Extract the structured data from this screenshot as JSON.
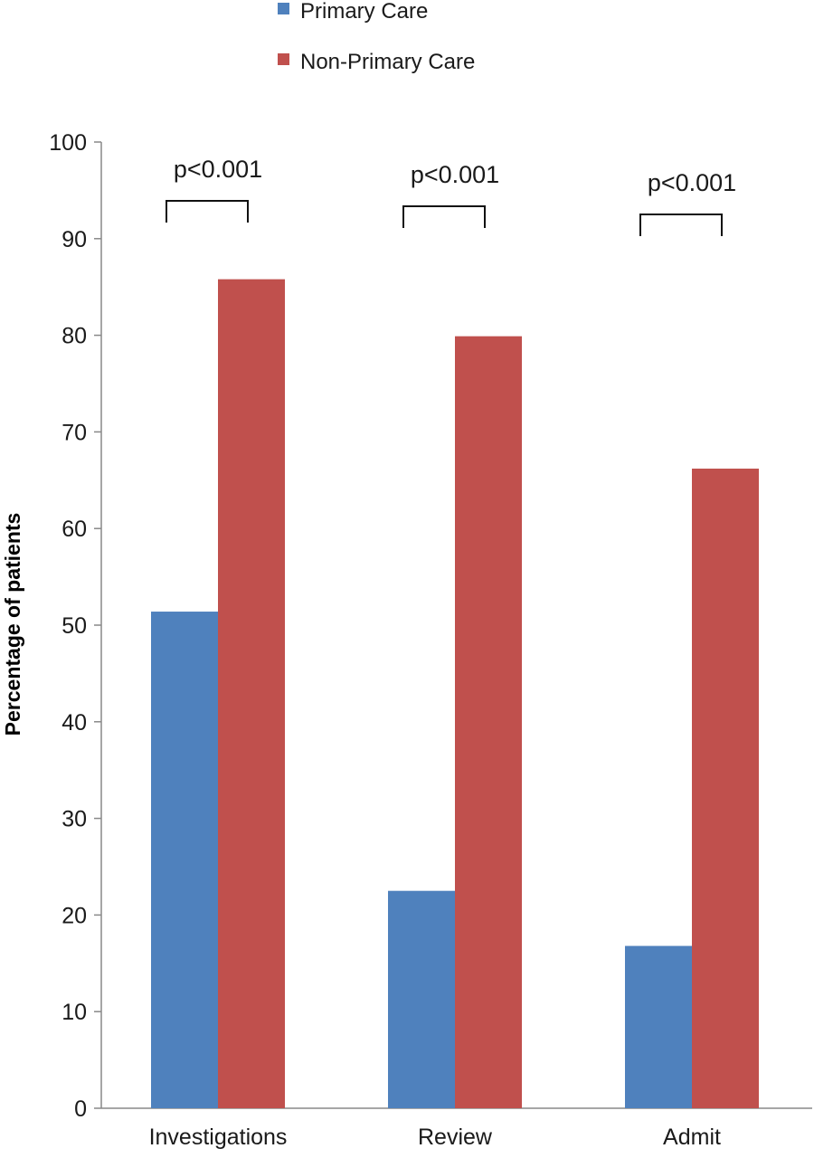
{
  "chart_data": {
    "type": "bar",
    "categories": [
      "Investigations",
      "Review",
      "Admit"
    ],
    "series": [
      {
        "name": "Primary Care",
        "color": "#4f81bd",
        "values": [
          51.4,
          22.5,
          16.8
        ]
      },
      {
        "name": "Non-Primary Care",
        "color": "#c0504d",
        "values": [
          85.8,
          79.9,
          66.2
        ]
      }
    ],
    "annotations": [
      "p<0.001",
      "p<0.001",
      "p<0.001"
    ],
    "xlabel": "",
    "ylabel": "Percentage of patients",
    "ylim": [
      0,
      100
    ],
    "yticks": [
      0,
      10,
      20,
      30,
      40,
      50,
      60,
      70,
      80,
      90,
      100
    ],
    "grid": false,
    "legend_position": "top"
  }
}
